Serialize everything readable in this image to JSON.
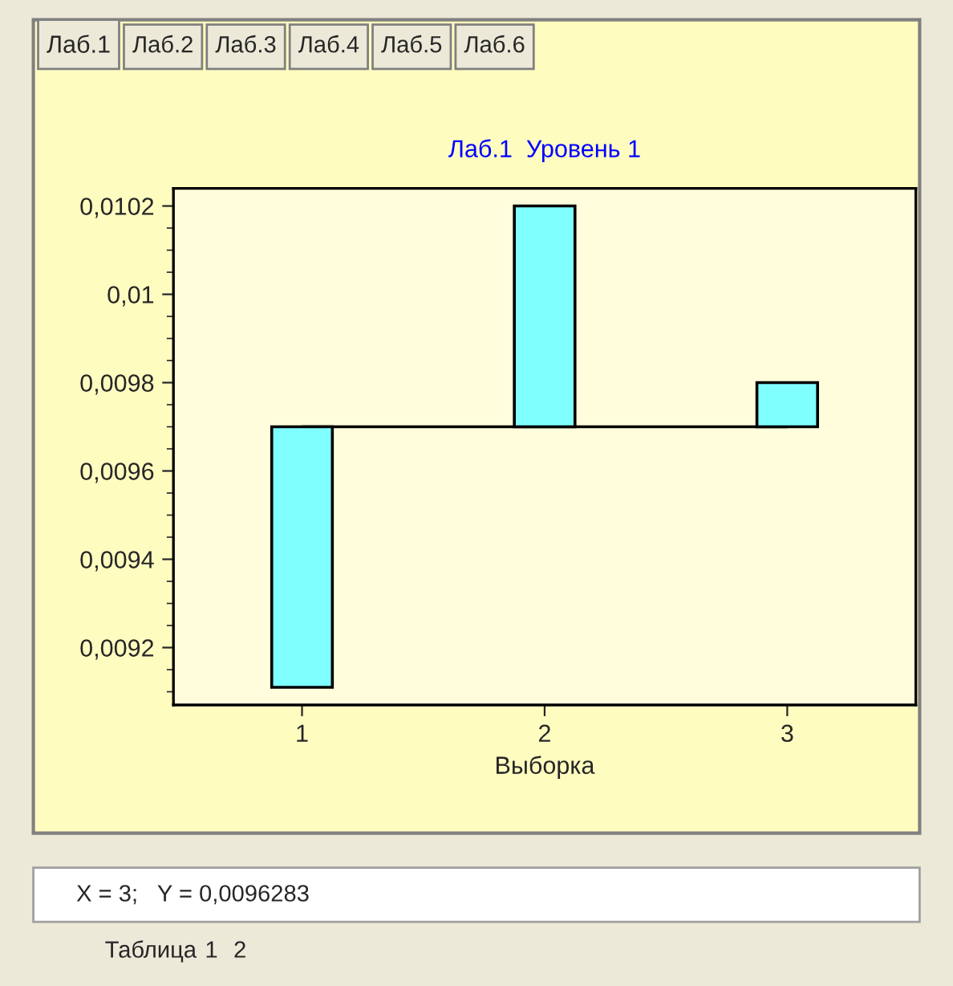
{
  "chart_data": {
    "type": "bar",
    "title": "Лаб.1  Уровень 1",
    "xlabel": "Выборка",
    "categories": [
      "1",
      "2",
      "3"
    ],
    "series": [
      {
        "color": "#80ffff",
        "values": [
          -0.00059,
          0.0005,
          0.0001
        ],
        "base": [
          0.0097,
          0.0097,
          0.0097
        ]
      },
      {
        "type": "line",
        "color": "#000000",
        "values": [
          0.0097,
          0.0097,
          0.0097
        ]
      }
    ],
    "ylim": [
      0.00907,
      0.01024
    ],
    "yticks": [
      {
        "value": 0.0092,
        "label": "0,0092"
      },
      {
        "value": 0.0094,
        "label": "0,0094"
      },
      {
        "value": 0.0096,
        "label": "0,0096"
      },
      {
        "value": 0.0098,
        "label": "0,0098"
      },
      {
        "value": 0.01,
        "label": "0,01"
      },
      {
        "value": 0.0102,
        "label": "0,0102"
      }
    ],
    "grid": false,
    "legend": false,
    "annotations": [
      "X = 3;   Y = 0,0096283",
      "Лаб.1",
      "Лаб.2",
      "Лаб.3",
      "Лаб.4",
      "Лаб.5",
      "Лаб.6",
      "Таблица",
      "1",
      "2"
    ]
  }
}
